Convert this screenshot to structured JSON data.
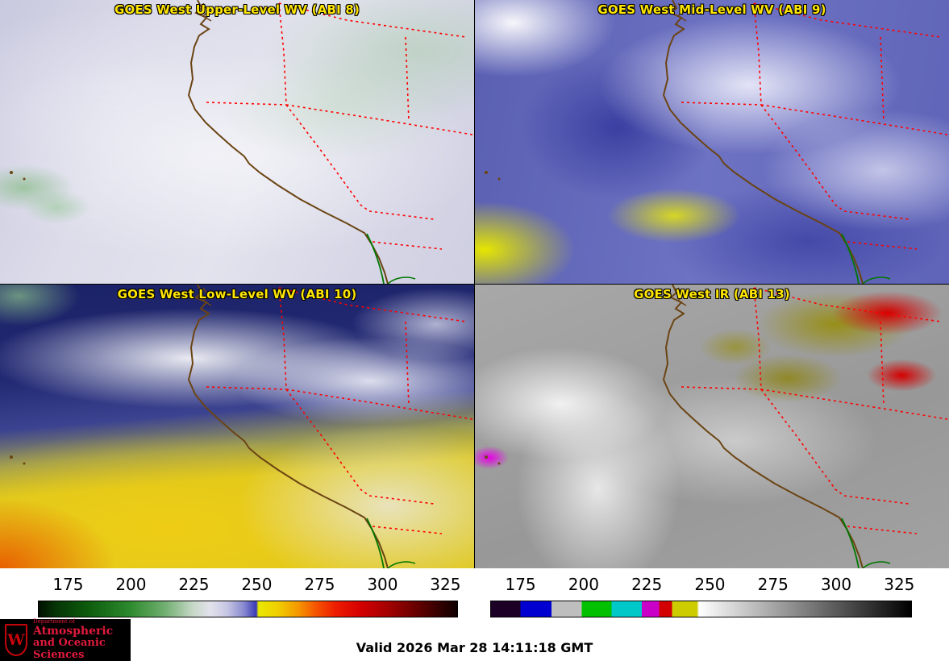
{
  "panels": [
    {
      "title": "GOES West Upper-Level WV (ABI 8)"
    },
    {
      "title": "GOES West Mid-Level WV (ABI 9)"
    },
    {
      "title": "GOES West Low-Level WV (ABI 10)"
    },
    {
      "title": "GOES West IR (ABI 13)"
    }
  ],
  "colorbars": [
    {
      "name": "water-vapor-brightness-temperature",
      "ticks": [
        "175",
        "200",
        "225",
        "250",
        "275",
        "300",
        "325"
      ],
      "range": [
        163,
        330
      ],
      "stops": [
        [
          "#001000",
          0
        ],
        [
          "#063406",
          4
        ],
        [
          "#0d5c0d",
          12
        ],
        [
          "#2e8b2e",
          22
        ],
        [
          "#6fae6f",
          30
        ],
        [
          "#c8d8c8",
          37
        ],
        [
          "#e2e2ec",
          41
        ],
        [
          "#c6c6e4",
          45
        ],
        [
          "#8a8ad0",
          49
        ],
        [
          "#3a3ab8",
          52
        ],
        [
          "#e8e800",
          52.5
        ],
        [
          "#f0d000",
          57
        ],
        [
          "#f59800",
          62
        ],
        [
          "#f55800",
          66
        ],
        [
          "#ee1c00",
          71
        ],
        [
          "#d40000",
          77
        ],
        [
          "#a00000",
          84
        ],
        [
          "#600000",
          91
        ],
        [
          "#280000",
          97
        ],
        [
          "#100000",
          100
        ]
      ]
    },
    {
      "name": "ir-brightness-temperature",
      "ticks": [
        "175",
        "200",
        "225",
        "250",
        "275",
        "300",
        "325"
      ],
      "range": [
        163,
        330
      ],
      "stops": [
        [
          "#1c0026",
          0
        ],
        [
          "#1c0026",
          7
        ],
        [
          "#0000d0",
          7
        ],
        [
          "#0000d0",
          14.4
        ],
        [
          "#bebebe",
          14.4
        ],
        [
          "#bebebe",
          21.6
        ],
        [
          "#00c000",
          21.6
        ],
        [
          "#00c000",
          28.7
        ],
        [
          "#00c8c8",
          28.7
        ],
        [
          "#00c8c8",
          35.9
        ],
        [
          "#c800c8",
          35.9
        ],
        [
          "#c800c8",
          40
        ],
        [
          "#d20000",
          40
        ],
        [
          "#d20000",
          43.1
        ],
        [
          "#cccc00",
          43.1
        ],
        [
          "#cccc00",
          49
        ],
        [
          "#ffffff",
          49.5
        ],
        [
          "#000000",
          100
        ]
      ]
    }
  ],
  "footer": {
    "valid_text": "Valid 2026 Mar 28 14:11:18 GMT",
    "logo": {
      "crest_letter": "W",
      "dept": "Department of",
      "line1": "Atmospheric",
      "line2": "and Oceanic Sciences"
    }
  },
  "colors": {
    "title_yellow": "#ffe600",
    "state_border_red": "#ff0000",
    "coastline_brown": "#6b4413",
    "river_green": "#007700",
    "uw_red": "#c5050c",
    "logo_text_red": "#e11a3c"
  }
}
